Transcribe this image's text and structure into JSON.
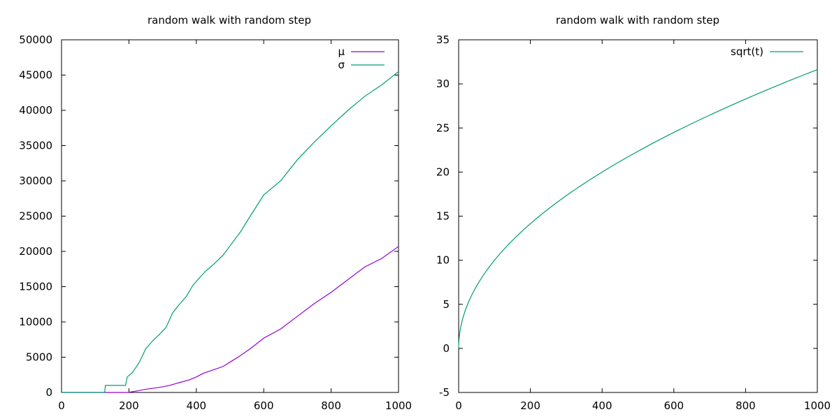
{
  "chart_data": [
    {
      "type": "line",
      "title": "random walk with random step",
      "xlabel": "",
      "ylabel": "",
      "xlim": [
        0,
        1000
      ],
      "ylim": [
        0,
        50000
      ],
      "x_ticks": [
        0,
        200,
        400,
        600,
        800,
        1000
      ],
      "y_ticks": [
        0,
        5000,
        10000,
        15000,
        20000,
        25000,
        30000,
        35000,
        40000,
        45000,
        50000
      ],
      "grid": false,
      "legend_position": "top-right",
      "series": [
        {
          "name": "μ",
          "color": "#9400d3",
          "x": [
            0,
            100,
            190,
            200,
            220,
            250,
            280,
            300,
            320,
            350,
            380,
            400,
            420,
            450,
            480,
            500,
            530,
            560,
            600,
            650,
            700,
            750,
            800,
            850,
            900,
            950,
            1000
          ],
          "y": [
            0,
            0,
            0,
            30,
            180,
            450,
            650,
            800,
            1000,
            1400,
            1800,
            2200,
            2700,
            3200,
            3700,
            4300,
            5200,
            6200,
            7700,
            9000,
            10800,
            12600,
            14200,
            16000,
            17800,
            19000,
            20700
          ]
        },
        {
          "name": "σ",
          "color": "#009e73",
          "x": [
            0,
            128,
            130,
            190,
            195,
            210,
            230,
            250,
            270,
            290,
            310,
            330,
            350,
            370,
            390,
            410,
            430,
            450,
            480,
            500,
            530,
            560,
            600,
            650,
            700,
            750,
            800,
            850,
            900,
            950,
            1000
          ],
          "y": [
            0,
            0,
            1000,
            1000,
            2200,
            2800,
            4200,
            6200,
            7300,
            8200,
            9200,
            11300,
            12500,
            13600,
            15200,
            16300,
            17300,
            18100,
            19500,
            20800,
            22700,
            25000,
            28000,
            30000,
            33000,
            35500,
            37800,
            40000,
            42000,
            43600,
            45500
          ]
        }
      ]
    },
    {
      "type": "line",
      "title": "random walk with random step",
      "xlabel": "",
      "ylabel": "",
      "xlim": [
        0,
        1000
      ],
      "ylim": [
        -5,
        35
      ],
      "x_ticks": [
        0,
        200,
        400,
        600,
        800,
        1000
      ],
      "y_ticks": [
        -5,
        0,
        5,
        10,
        15,
        20,
        25,
        30,
        35
      ],
      "grid": false,
      "legend_position": "top-right",
      "series": [
        {
          "name": "sqrt(t)",
          "color": "#009e73",
          "function": "sqrt",
          "x_range": [
            0,
            1000
          ]
        }
      ]
    }
  ]
}
